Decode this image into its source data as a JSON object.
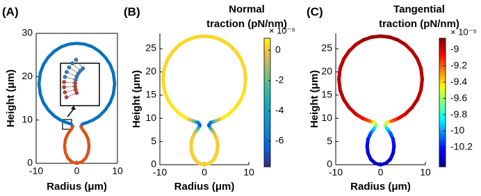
{
  "chart_data": [
    {
      "type": "line",
      "panel_label": "(A)",
      "xlabel": "Radius (μm)",
      "ylabel": "Height (μm)",
      "xlim": [
        -10,
        10
      ],
      "ylim": [
        0,
        30
      ],
      "xticks": [
        -10,
        0,
        10
      ],
      "yticks": [
        0,
        10,
        20,
        30
      ],
      "box": true,
      "series": [
        {
          "color": "#0072bd",
          "x": [
            1.0,
            1.4,
            2.5,
            4.0,
            5.5,
            7.0,
            8.2,
            9.0,
            9.3,
            9.0,
            8.2,
            7.0,
            5.5,
            3.8,
            2.0,
            0,
            -2.0,
            -3.8,
            -5.5,
            -7.0,
            -8.2,
            -9.0,
            -9.3,
            -9.0,
            -8.2,
            -7.0,
            -5.5,
            -4.0,
            -2.5,
            -1.4,
            -1.0
          ],
          "y": [
            8.5,
            9.1,
            9.4,
            10.0,
            10.9,
            12.3,
            14.0,
            16.0,
            18.4,
            20.8,
            22.8,
            24.5,
            25.9,
            26.9,
            27.5,
            27.7,
            27.5,
            26.9,
            25.9,
            24.5,
            22.8,
            20.8,
            18.4,
            16.0,
            14.0,
            12.3,
            10.9,
            10.0,
            9.4,
            9.1,
            8.5
          ]
        },
        {
          "color": "#d95319",
          "x": [
            1.0,
            1.4,
            2.2,
            2.8,
            3.0,
            2.8,
            2.2,
            1.2,
            0,
            -1.2,
            -2.2,
            -2.8,
            -3.0,
            -2.8,
            -2.2,
            -1.4,
            -1.0
          ],
          "y": [
            8.5,
            7.8,
            6.8,
            5.5,
            4.0,
            2.5,
            1.2,
            0.3,
            0,
            0.3,
            1.2,
            2.5,
            4.0,
            5.5,
            6.8,
            7.8,
            8.5
          ]
        }
      ]
    },
    {
      "type": "colored_line",
      "panel_label": "(B)",
      "xlabel": "Radius (μm)",
      "ylabel": "Height (μm)",
      "xlim": [
        -10,
        10
      ],
      "ylim": [
        0,
        28.3
      ],
      "xticks": [
        -10,
        0,
        10
      ],
      "yticks": [
        0,
        5,
        10,
        15,
        20,
        25
      ],
      "box": false,
      "colorbar_title": [
        "Normal",
        "traction (pN/nm)"
      ],
      "colorbar_exponent": "× 10⁻⁵",
      "colormap": "parula",
      "clim": [
        -7.7,
        0.8
      ],
      "cticks": [
        0,
        -2,
        -4,
        -6
      ],
      "x": [
        0,
        1.2,
        2.2,
        2.8,
        3.0,
        2.8,
        2.2,
        1.4,
        1.0,
        1.4,
        2.5,
        4.0,
        5.5,
        7.0,
        8.2,
        9.0,
        9.3,
        9.0,
        8.2,
        7.0,
        5.5,
        3.8,
        2.0,
        0,
        -2.0,
        -3.8,
        -5.5,
        -7.0,
        -8.2,
        -9.0,
        -9.3,
        -9.0,
        -8.2,
        -7.0,
        -5.5,
        -4.0,
        -2.5,
        -1.4,
        -1.0,
        -1.4,
        -2.2,
        -2.8,
        -3.0,
        -2.8,
        -2.2,
        -1.2
      ],
      "y": [
        0,
        0.3,
        1.2,
        2.5,
        4.0,
        5.5,
        6.8,
        7.8,
        8.5,
        9.1,
        9.4,
        10.0,
        10.9,
        12.3,
        14.0,
        16.0,
        18.4,
        20.8,
        22.8,
        24.5,
        25.9,
        26.9,
        27.5,
        27.7,
        27.5,
        26.9,
        25.9,
        24.5,
        22.8,
        20.8,
        18.4,
        16.0,
        14.0,
        12.3,
        10.9,
        10.0,
        9.4,
        9.1,
        8.5,
        7.8,
        6.8,
        5.5,
        4.0,
        2.5,
        1.2,
        0.3
      ],
      "values": [
        0.2,
        0.2,
        0.2,
        0.2,
        0.2,
        0.1,
        -0.3,
        -2.5,
        -6.5,
        -5.5,
        -1.5,
        0.6,
        0.6,
        0.5,
        0.5,
        0.4,
        0.3,
        0.3,
        0.3,
        0.3,
        0.3,
        0.3,
        0.3,
        0.3,
        0.3,
        0.3,
        0.3,
        0.3,
        0.3,
        0.3,
        0.3,
        0.4,
        0.5,
        0.5,
        0.6,
        0.6,
        -1.5,
        -5.5,
        -6.5,
        -2.5,
        -0.3,
        0.1,
        0.2,
        0.2,
        0.2,
        0.2
      ]
    },
    {
      "type": "colored_line",
      "panel_label": "(C)",
      "xlabel": "Radius (μm)",
      "ylabel": "Height (μm)",
      "xlim": [
        -10,
        10
      ],
      "ylim": [
        0,
        28.3
      ],
      "xticks": [
        -10,
        0,
        10
      ],
      "yticks": [
        0,
        5,
        10,
        15,
        20,
        25
      ],
      "box": false,
      "colorbar_title": [
        "Tangential",
        "traction (pN/nm)"
      ],
      "colorbar_exponent": "× 10⁻⁵",
      "colormap": "jet",
      "clim": [
        -10.44,
        -8.86
      ],
      "cticks": [
        -9,
        -9.2,
        -9.4,
        -9.6,
        -9.8,
        -10,
        -10.2
      ],
      "x": [
        0,
        1.2,
        2.2,
        2.8,
        3.0,
        2.8,
        2.2,
        1.4,
        1.0,
        1.4,
        2.5,
        4.0,
        5.5,
        7.0,
        8.2,
        9.0,
        9.3,
        9.0,
        8.2,
        7.0,
        5.5,
        3.8,
        2.0,
        0,
        -2.0,
        -3.8,
        -5.5,
        -7.0,
        -8.2,
        -9.0,
        -9.3,
        -9.0,
        -8.2,
        -7.0,
        -5.5,
        -4.0,
        -2.5,
        -1.4,
        -1.0,
        -1.4,
        -2.2,
        -2.8,
        -3.0,
        -2.8,
        -2.2,
        -1.2
      ],
      "y": [
        0,
        0.3,
        1.2,
        2.5,
        4.0,
        5.5,
        6.8,
        7.8,
        8.5,
        9.1,
        9.4,
        10.0,
        10.9,
        12.3,
        14.0,
        16.0,
        18.4,
        20.8,
        22.8,
        24.5,
        25.9,
        26.9,
        27.5,
        27.7,
        27.5,
        26.9,
        25.9,
        24.5,
        22.8,
        20.8,
        18.4,
        16.0,
        14.0,
        12.3,
        10.9,
        10.0,
        9.4,
        9.1,
        8.5,
        7.8,
        6.8,
        5.5,
        4.0,
        2.5,
        1.2,
        0.3
      ],
      "values": [
        -10.35,
        -10.35,
        -10.3,
        -10.3,
        -10.25,
        -10.2,
        -10.1,
        -9.9,
        -9.6,
        -9.5,
        -9.2,
        -9.05,
        -9.0,
        -8.95,
        -8.95,
        -8.95,
        -8.95,
        -8.95,
        -8.95,
        -8.95,
        -8.95,
        -8.9,
        -8.9,
        -8.9,
        -8.9,
        -8.9,
        -8.95,
        -8.95,
        -8.95,
        -8.95,
        -8.95,
        -8.95,
        -8.95,
        -8.95,
        -9.0,
        -9.05,
        -9.2,
        -9.5,
        -9.6,
        -9.9,
        -10.1,
        -10.2,
        -10.25,
        -10.3,
        -10.3,
        -10.35
      ]
    }
  ]
}
